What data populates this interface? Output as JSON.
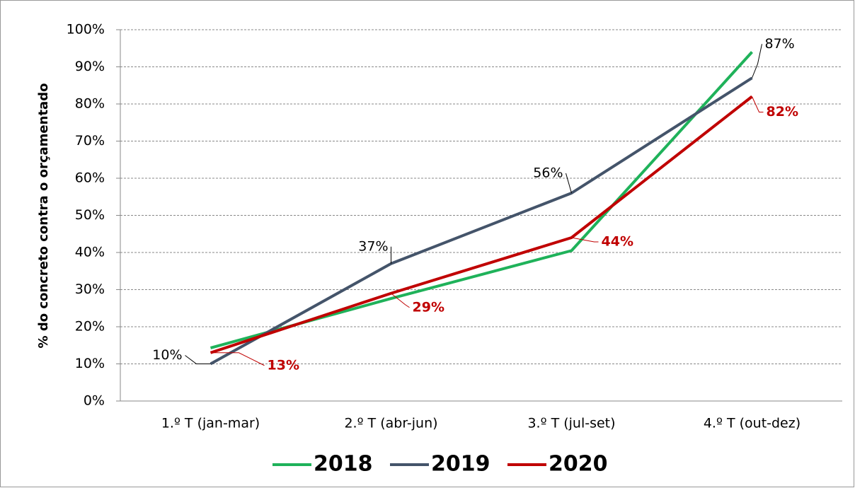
{
  "chart_data": {
    "type": "line",
    "y_label": "%  do concreto contra o orçamentado",
    "categories": [
      "1.º T  (jan-mar)",
      "2.º T (abr-jun)",
      "3.º T  (jul-set)",
      "4.º T  (out-dez)"
    ],
    "series": [
      {
        "name": "2018",
        "color": "#1fb25a",
        "values": [
          14.3,
          27.6,
          40.5,
          94
        ]
      },
      {
        "name": "2019",
        "color": "#44546a",
        "values": [
          10,
          37,
          56,
          87
        ],
        "value_labels": [
          "10%",
          "37%",
          "56%",
          "87%"
        ]
      },
      {
        "name": "2020",
        "color": "#c00000",
        "values": [
          13,
          29,
          44,
          82
        ],
        "value_labels": [
          "13%",
          "29%",
          "44%",
          "82%"
        ]
      }
    ],
    "ylim": [
      0,
      100
    ],
    "yticks": [
      {
        "value": 0,
        "label": "0%"
      },
      {
        "value": 10,
        "label": "10%"
      },
      {
        "value": 20,
        "label": "20%"
      },
      {
        "value": 30,
        "label": "30%"
      },
      {
        "value": 40,
        "label": "40%"
      },
      {
        "value": 50,
        "label": "50%"
      },
      {
        "value": 60,
        "label": "60%"
      },
      {
        "value": 70,
        "label": "70%"
      },
      {
        "value": 80,
        "label": "80%"
      },
      {
        "value": 90,
        "label": "90%"
      },
      {
        "value": 100,
        "label": "100%"
      }
    ],
    "grid": true,
    "legend": "bottom"
  }
}
